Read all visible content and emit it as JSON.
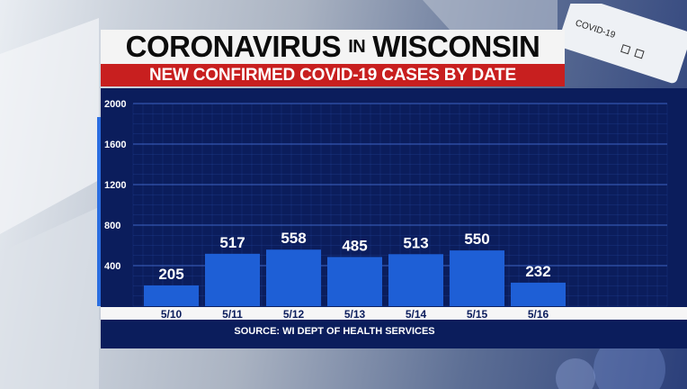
{
  "header": {
    "title_part1": "CORONAVIRUS",
    "title_part2": "IN",
    "title_part3": "WISCONSIN",
    "subtitle": "NEW CONFIRMED COVID-19 CASES BY DATE"
  },
  "background": {
    "test_tube_label": "COVID-19"
  },
  "source": "SOURCE: WI DEPT OF HEALTH SERVICES",
  "colors": {
    "bar": "#1e5fd6",
    "panel": "#0b1d5c",
    "grid": "#2a4faa",
    "title_band": "#c81f1f"
  },
  "chart_data": {
    "type": "bar",
    "title": "NEW CONFIRMED COVID-19 CASES BY DATE",
    "categories": [
      "5/10",
      "5/11",
      "5/12",
      "5/13",
      "5/14",
      "5/15",
      "5/16"
    ],
    "values": [
      205,
      517,
      558,
      485,
      513,
      550,
      232
    ],
    "data_labels": [
      "205",
      "517",
      "558",
      "485",
      "513",
      "550",
      "232"
    ],
    "y_ticks": [
      "400",
      "800",
      "1200",
      "1600",
      "2000"
    ],
    "ylim": [
      0,
      2000
    ],
    "grid": true,
    "xlabel": "",
    "ylabel": ""
  }
}
